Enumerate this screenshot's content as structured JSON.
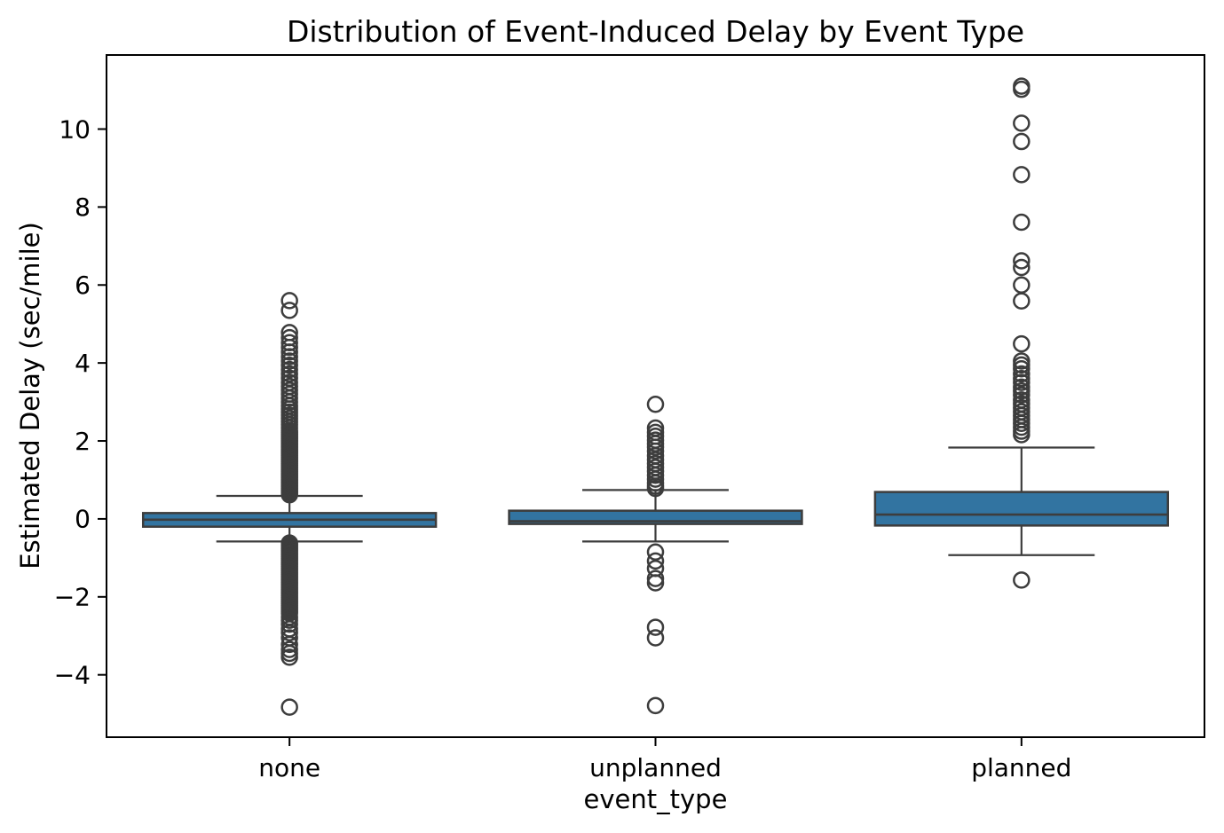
{
  "chart_data": {
    "type": "box",
    "title": "Distribution of Event-Induced Delay by Event Type",
    "xlabel": "event_type",
    "ylabel": "Estimated Delay (sec/mile)",
    "categories": [
      "none",
      "unplanned",
      "planned"
    ],
    "ylim": [
      -5.6,
      11.9
    ],
    "yticks": [
      -4,
      -2,
      0,
      2,
      4,
      6,
      8,
      10
    ],
    "grid": false,
    "legend": "none",
    "box_fill_color": "#3274a1",
    "line_color": "#3d3d3d",
    "spine_color": "#000000",
    "series": [
      {
        "category": "none",
        "whisker_low": -0.58,
        "q1": -0.2,
        "median": -0.02,
        "q3": 0.15,
        "whisker_high": 0.59,
        "outliers": [
          0.62,
          0.66,
          0.7,
          0.74,
          0.78,
          0.82,
          0.86,
          0.9,
          0.94,
          0.98,
          1.02,
          1.06,
          1.1,
          1.14,
          1.18,
          1.22,
          1.26,
          1.3,
          1.34,
          1.38,
          1.42,
          1.46,
          1.5,
          1.54,
          1.58,
          1.62,
          1.66,
          1.7,
          1.74,
          1.78,
          1.82,
          1.86,
          1.9,
          1.94,
          1.98,
          2.02,
          2.06,
          2.1,
          2.14,
          2.18,
          2.22,
          2.26,
          2.34,
          2.42,
          2.5,
          2.58,
          2.66,
          2.74,
          2.82,
          2.9,
          3.0,
          3.1,
          3.2,
          3.3,
          3.4,
          3.5,
          3.61,
          3.72,
          3.83,
          3.94,
          4.05,
          4.16,
          4.28,
          4.4,
          4.52,
          4.65,
          4.78,
          5.35,
          5.6,
          -0.62,
          -0.67,
          -0.72,
          -0.77,
          -0.82,
          -0.87,
          -0.92,
          -0.97,
          -1.02,
          -1.07,
          -1.12,
          -1.17,
          -1.22,
          -1.27,
          -1.32,
          -1.37,
          -1.42,
          -1.47,
          -1.52,
          -1.57,
          -1.62,
          -1.67,
          -1.72,
          -1.77,
          -1.82,
          -1.87,
          -1.92,
          -1.97,
          -2.02,
          -2.07,
          -2.12,
          -2.17,
          -2.22,
          -2.27,
          -2.32,
          -2.37,
          -2.42,
          -2.52,
          -2.6,
          -2.7,
          -2.82,
          -2.92,
          -3.05,
          -3.22,
          -3.35,
          -3.45,
          -3.55,
          -4.83
        ]
      },
      {
        "category": "unplanned",
        "whisker_low": -0.58,
        "q1": -0.13,
        "median": -0.06,
        "q3": 0.21,
        "whisker_high": 0.74,
        "outliers": [
          0.78,
          0.84,
          0.92,
          1.02,
          1.12,
          1.22,
          1.32,
          1.42,
          1.52,
          1.62,
          1.74,
          1.84,
          1.93,
          2.02,
          2.12,
          2.22,
          2.33,
          2.94,
          -0.85,
          -1.08,
          -1.27,
          -1.53,
          -1.64,
          -2.78,
          -3.05,
          -4.79
        ]
      },
      {
        "category": "planned",
        "whisker_low": -0.93,
        "q1": -0.17,
        "median": 0.11,
        "q3": 0.69,
        "whisker_high": 1.83,
        "outliers": [
          2.16,
          2.25,
          2.35,
          2.45,
          2.55,
          2.65,
          2.75,
          2.85,
          2.95,
          3.05,
          3.18,
          3.28,
          3.38,
          3.5,
          3.6,
          3.72,
          3.85,
          3.95,
          4.05,
          4.49,
          5.59,
          6.0,
          6.45,
          6.62,
          7.61,
          8.83,
          9.68,
          10.15,
          11.02,
          11.1,
          -1.57
        ]
      }
    ]
  }
}
